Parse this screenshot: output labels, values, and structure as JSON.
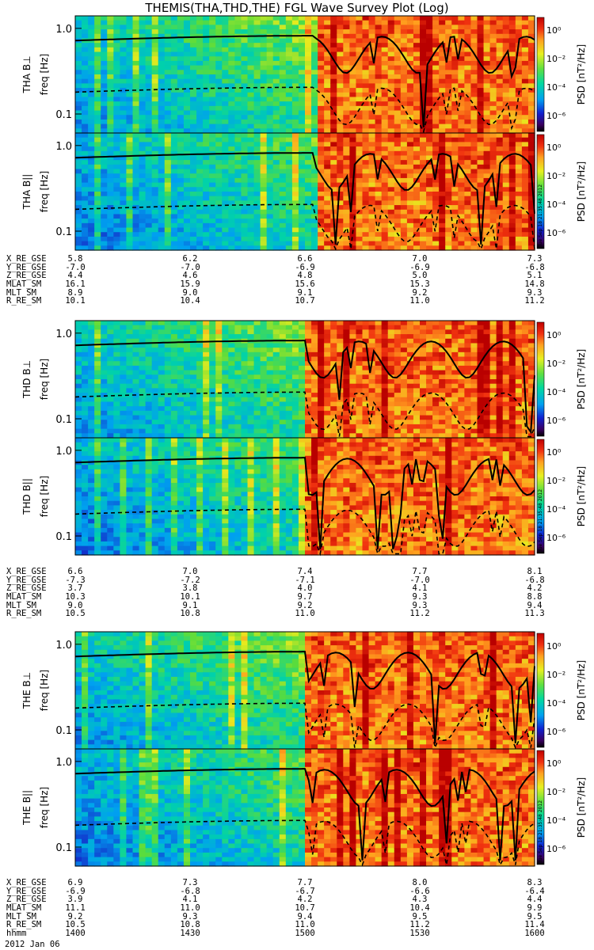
{
  "title": "THEMIS(THA,THD,THE) FGL Wave Survey Plot (Log)",
  "date_label": "2012 Jan 06",
  "colorbar": {
    "label": "PSD [nT²/Hz]",
    "ticks": [
      "10⁰",
      "10⁻²",
      "10⁻⁴",
      "10⁻⁶"
    ]
  },
  "freq_ticks": [
    "1.0",
    "0.1"
  ],
  "stamp": "Tue Sep 18 21:35:48 2012",
  "chart_data": [
    {
      "type": "heatmap",
      "probe": "THA",
      "panel": "THA B⊥",
      "ylabel": "freq [Hz]",
      "yscale": "log",
      "ylim": [
        0.06,
        1.4
      ],
      "xlim": [
        "14:00",
        "16:00"
      ],
      "colorscale": "log",
      "zlim": [
        1e-06,
        10.0
      ]
    },
    {
      "type": "heatmap",
      "probe": "THA",
      "panel": "THA B||",
      "ylabel": "freq [Hz]",
      "yscale": "log",
      "ylim": [
        0.06,
        1.4
      ],
      "xlim": [
        "14:00",
        "16:00"
      ],
      "colorscale": "log",
      "zlim": [
        1e-06,
        10.0
      ]
    },
    {
      "type": "heatmap",
      "probe": "THD",
      "panel": "THD B⊥",
      "ylabel": "freq [Hz]",
      "yscale": "log",
      "ylim": [
        0.06,
        1.4
      ],
      "xlim": [
        "14:00",
        "16:00"
      ],
      "colorscale": "log",
      "zlim": [
        1e-06,
        10.0
      ]
    },
    {
      "type": "heatmap",
      "probe": "THD",
      "panel": "THD B||",
      "ylabel": "freq [Hz]",
      "yscale": "log",
      "ylim": [
        0.06,
        1.4
      ],
      "xlim": [
        "14:00",
        "16:00"
      ],
      "colorscale": "log",
      "zlim": [
        1e-06,
        10.0
      ]
    },
    {
      "type": "heatmap",
      "probe": "THE",
      "panel": "THE B⊥",
      "ylabel": "freq [Hz]",
      "yscale": "log",
      "ylim": [
        0.06,
        1.4
      ],
      "xlim": [
        "14:00",
        "16:00"
      ],
      "colorscale": "log",
      "zlim": [
        1e-06,
        10.0
      ]
    },
    {
      "type": "heatmap",
      "probe": "THE",
      "panel": "THE B||",
      "ylabel": "freq [Hz]",
      "yscale": "log",
      "ylim": [
        0.06,
        1.4
      ],
      "xlim": [
        "14:00",
        "16:00"
      ],
      "colorscale": "log",
      "zlim": [
        1e-06,
        10.0
      ]
    }
  ],
  "ephemeris": [
    {
      "probe": "THA",
      "rows": [
        {
          "name": "X_RE_GSE",
          "values": [
            "5.8",
            "6.2",
            "6.6",
            "7.0",
            "7.3"
          ]
        },
        {
          "name": "Y_RE_GSE",
          "values": [
            "-7.0",
            "-7.0",
            "-6.9",
            "-6.9",
            "-6.8"
          ]
        },
        {
          "name": "Z_RE_GSE",
          "values": [
            "4.4",
            "4.6",
            "4.8",
            "5.0",
            "5.1"
          ]
        },
        {
          "name": "MLAT_SM",
          "values": [
            "16.1",
            "15.9",
            "15.6",
            "15.3",
            "14.8"
          ]
        },
        {
          "name": "MLT_SM",
          "values": [
            "8.9",
            "9.0",
            "9.1",
            "9.2",
            "9.3"
          ]
        },
        {
          "name": "R_RE_SM",
          "values": [
            "10.1",
            "10.4",
            "10.7",
            "11.0",
            "11.2"
          ]
        }
      ]
    },
    {
      "probe": "THD",
      "rows": [
        {
          "name": "X_RE_GSE",
          "values": [
            "6.6",
            "7.0",
            "7.4",
            "7.7",
            "8.1"
          ]
        },
        {
          "name": "Y_RE_GSE",
          "values": [
            "-7.3",
            "-7.2",
            "-7.1",
            "-7.0",
            "-6.8"
          ]
        },
        {
          "name": "Z_RE_GSE",
          "values": [
            "3.7",
            "3.8",
            "4.0",
            "4.1",
            "4.2"
          ]
        },
        {
          "name": "MLAT_SM",
          "values": [
            "10.3",
            "10.1",
            "9.7",
            "9.3",
            "8.8"
          ]
        },
        {
          "name": "MLT_SM",
          "values": [
            "9.0",
            "9.1",
            "9.2",
            "9.3",
            "9.4"
          ]
        },
        {
          "name": "R_RE_SM",
          "values": [
            "10.5",
            "10.8",
            "11.0",
            "11.2",
            "11.3"
          ]
        }
      ]
    },
    {
      "probe": "THE",
      "rows": [
        {
          "name": "X_RE_GSE",
          "values": [
            "6.9",
            "7.3",
            "7.7",
            "8.0",
            "8.3"
          ]
        },
        {
          "name": "Y_RE_GSE",
          "values": [
            "-6.9",
            "-6.8",
            "-6.7",
            "-6.6",
            "-6.4"
          ]
        },
        {
          "name": "Z_RE_GSE",
          "values": [
            "3.9",
            "4.1",
            "4.2",
            "4.3",
            "4.4"
          ]
        },
        {
          "name": "MLAT_SM",
          "values": [
            "11.1",
            "11.0",
            "10.7",
            "10.4",
            "9.9"
          ]
        },
        {
          "name": "MLT_SM",
          "values": [
            "9.2",
            "9.3",
            "9.4",
            "9.5",
            "9.5"
          ]
        },
        {
          "name": "R_RE_SM",
          "values": [
            "10.5",
            "10.8",
            "11.0",
            "11.2",
            "11.4"
          ]
        },
        {
          "name": "hhmm",
          "values": [
            "1400",
            "1430",
            "1500",
            "1530",
            "1600"
          ]
        }
      ]
    }
  ]
}
